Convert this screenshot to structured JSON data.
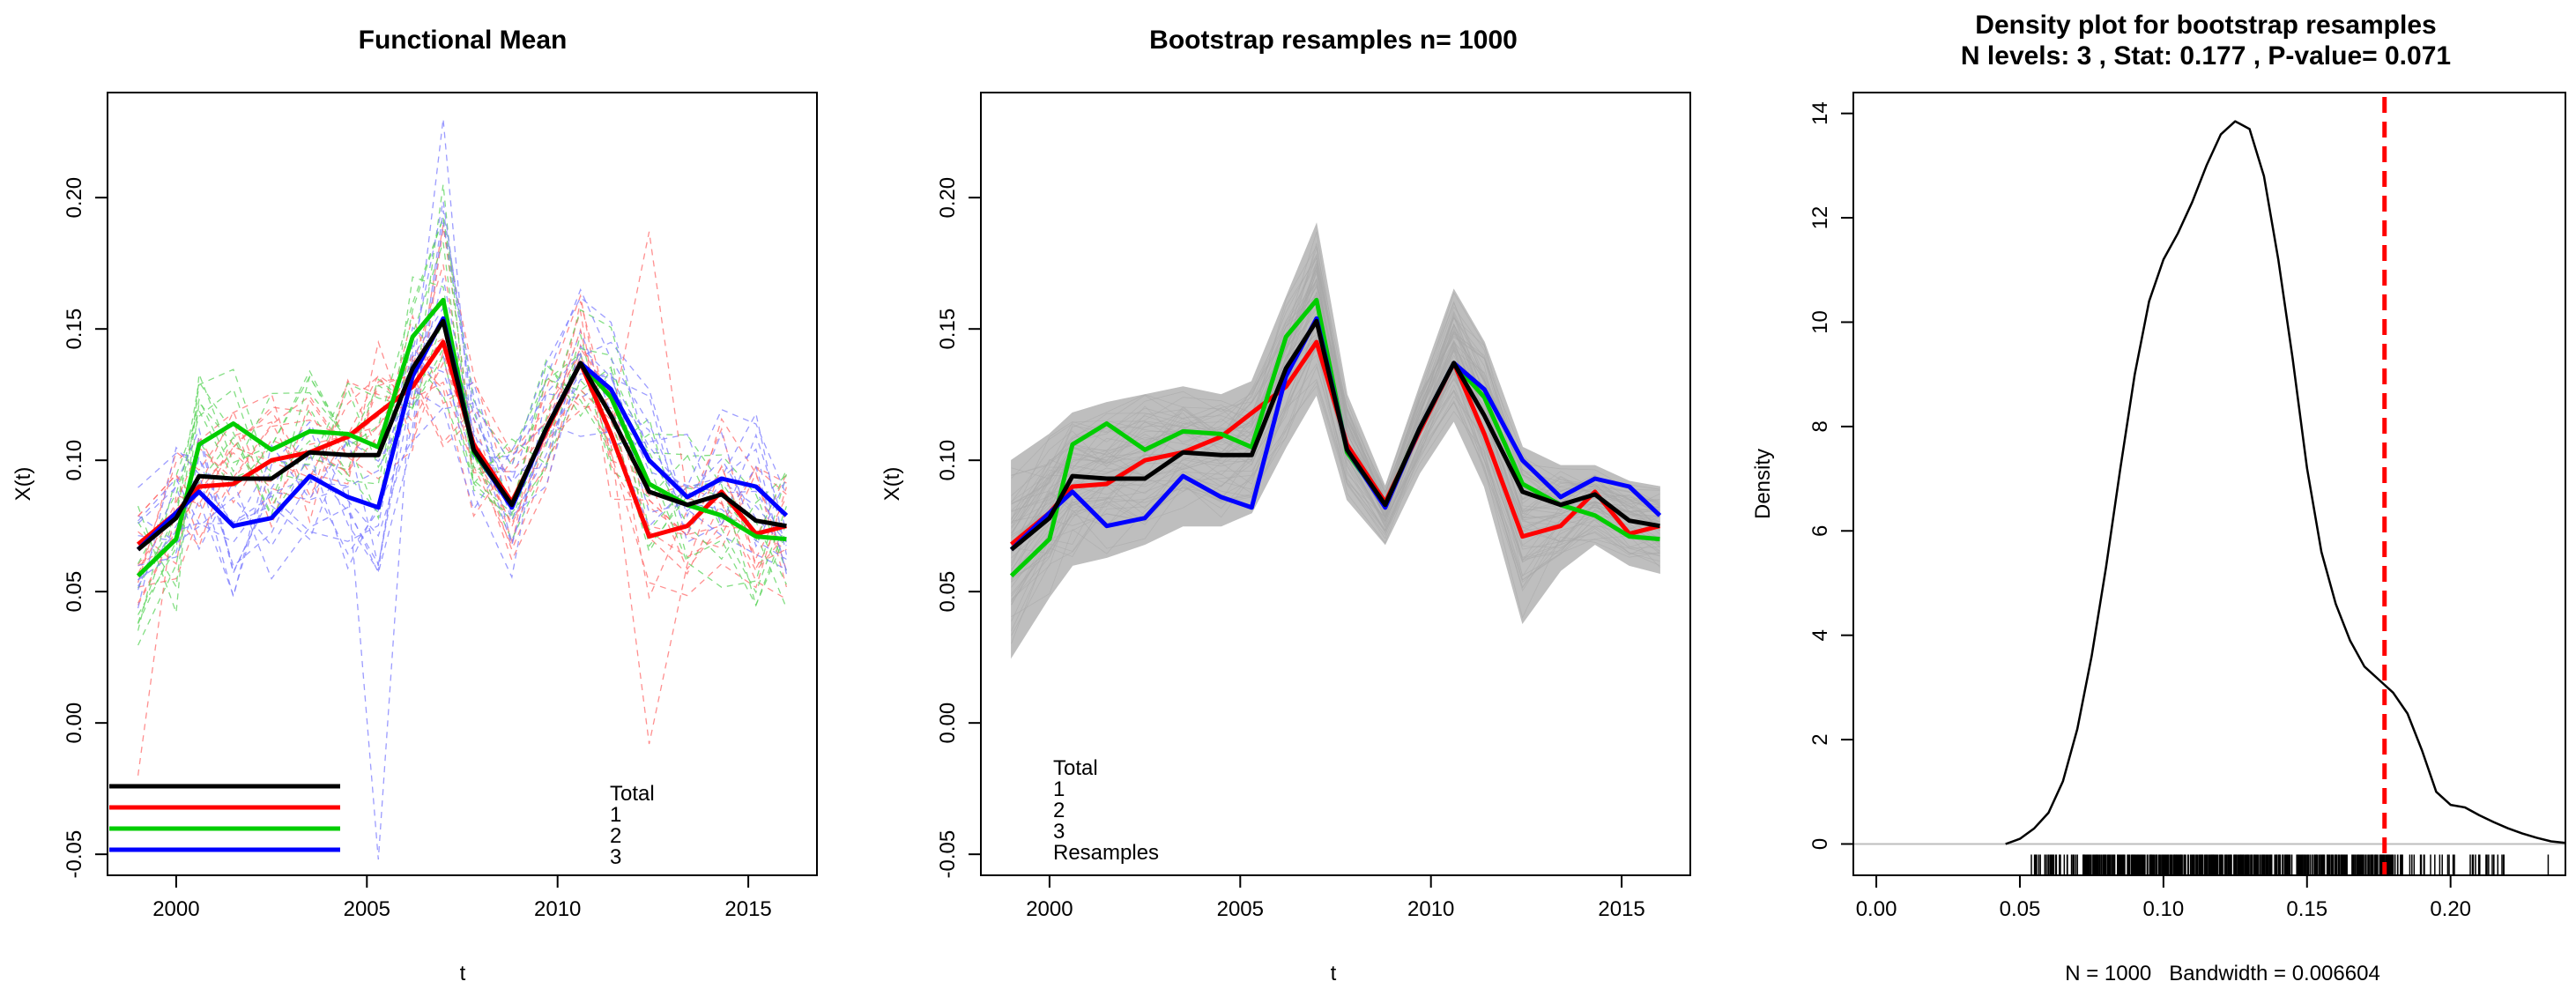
{
  "chart_data": [
    {
      "type": "line",
      "title": "Functional Mean",
      "xlabel": "t",
      "ylabel": "X(t)",
      "xlim": [
        1998.2,
        2016.8
      ],
      "ylim": [
        -0.058,
        0.24
      ],
      "xticks": [
        2000,
        2005,
        2010,
        2015
      ],
      "yticks": [
        -0.05,
        0.0,
        0.05,
        0.1,
        0.15,
        0.2
      ],
      "x": [
        1999,
        2000,
        2000.6,
        2001.5,
        2002.5,
        2003.5,
        2004.5,
        2005.3,
        2006.2,
        2007,
        2007.8,
        2008.8,
        2009.7,
        2010.6,
        2011.4,
        2012.4,
        2013.4,
        2014.3,
        2015.2,
        2016
      ],
      "series": [
        {
          "name": "Total",
          "color": "#000000",
          "values": [
            0.066,
            0.078,
            0.094,
            0.093,
            0.093,
            0.103,
            0.102,
            0.102,
            0.135,
            0.153,
            0.104,
            0.083,
            0.112,
            0.137,
            0.117,
            0.088,
            0.083,
            0.087,
            0.077,
            0.075
          ]
        },
        {
          "name": "1",
          "color": "#ff0000",
          "values": [
            0.068,
            0.08,
            0.09,
            0.091,
            0.1,
            0.103,
            0.109,
            0.118,
            0.128,
            0.145,
            0.106,
            0.084,
            0.111,
            0.137,
            0.11,
            0.071,
            0.075,
            0.088,
            0.072,
            0.075
          ]
        },
        {
          "name": "2",
          "color": "#00cd00",
          "values": [
            0.056,
            0.07,
            0.106,
            0.114,
            0.104,
            0.111,
            0.11,
            0.105,
            0.147,
            0.161,
            0.103,
            0.083,
            0.112,
            0.137,
            0.124,
            0.091,
            0.083,
            0.079,
            0.071,
            0.07
          ]
        },
        {
          "name": "3",
          "color": "#0000ff",
          "values": [
            0.066,
            0.08,
            0.088,
            0.075,
            0.078,
            0.094,
            0.086,
            0.082,
            0.132,
            0.154,
            0.104,
            0.082,
            0.112,
            0.137,
            0.127,
            0.1,
            0.086,
            0.093,
            0.09,
            0.079
          ]
        }
      ],
      "background_curves": "dashed individual sample curves (red, green, blue) around group means",
      "legend": {
        "position": "bottom",
        "entries": [
          "Total",
          "1",
          "2",
          "3"
        ]
      }
    },
    {
      "type": "line",
      "title": "Bootstrap resamples n= 1000",
      "xlabel": "t",
      "ylabel": "X(t)",
      "xlim": [
        1998.2,
        2016.8
      ],
      "ylim": [
        -0.058,
        0.24
      ],
      "xticks": [
        2000,
        2005,
        2010,
        2015
      ],
      "yticks": [
        -0.05,
        0.0,
        0.05,
        0.1,
        0.15,
        0.2
      ],
      "x": [
        1999,
        2000,
        2000.6,
        2001.5,
        2002.5,
        2003.5,
        2004.5,
        2005.3,
        2006.2,
        2007,
        2007.8,
        2008.8,
        2009.7,
        2010.6,
        2011.4,
        2012.4,
        2013.4,
        2014.3,
        2015.2,
        2016
      ],
      "series": [
        {
          "name": "Total",
          "color": "#000000",
          "values": [
            0.066,
            0.078,
            0.094,
            0.093,
            0.093,
            0.103,
            0.102,
            0.102,
            0.135,
            0.153,
            0.104,
            0.083,
            0.112,
            0.137,
            0.117,
            0.088,
            0.083,
            0.087,
            0.077,
            0.075
          ]
        },
        {
          "name": "1",
          "color": "#ff0000",
          "values": [
            0.068,
            0.08,
            0.09,
            0.091,
            0.1,
            0.103,
            0.109,
            0.118,
            0.128,
            0.145,
            0.106,
            0.084,
            0.111,
            0.137,
            0.11,
            0.071,
            0.075,
            0.088,
            0.072,
            0.075
          ]
        },
        {
          "name": "2",
          "color": "#00cd00",
          "values": [
            0.056,
            0.07,
            0.106,
            0.114,
            0.104,
            0.111,
            0.11,
            0.105,
            0.147,
            0.161,
            0.103,
            0.083,
            0.112,
            0.137,
            0.124,
            0.091,
            0.083,
            0.079,
            0.071,
            0.07
          ]
        },
        {
          "name": "3",
          "color": "#0000ff",
          "values": [
            0.066,
            0.08,
            0.088,
            0.075,
            0.078,
            0.094,
            0.086,
            0.082,
            0.132,
            0.154,
            0.104,
            0.082,
            0.112,
            0.137,
            0.127,
            0.1,
            0.086,
            0.093,
            0.09,
            0.079
          ]
        }
      ],
      "resample_band": {
        "color": "#bebebe",
        "upper": [
          0.1,
          0.11,
          0.118,
          0.122,
          0.125,
          0.128,
          0.125,
          0.13,
          0.162,
          0.19,
          0.125,
          0.09,
          0.128,
          0.165,
          0.145,
          0.105,
          0.098,
          0.098,
          0.092,
          0.09
        ],
        "lower": [
          0.025,
          0.048,
          0.06,
          0.063,
          0.068,
          0.075,
          0.075,
          0.08,
          0.105,
          0.125,
          0.085,
          0.068,
          0.095,
          0.115,
          0.09,
          0.038,
          0.058,
          0.068,
          0.06,
          0.057
        ]
      },
      "legend": {
        "position": "bottom",
        "entries": [
          "Total",
          "1",
          "2",
          "3",
          "Resamples"
        ]
      }
    },
    {
      "type": "area",
      "title": "Density plot for bootstrap resamples",
      "subtitle": "N levels: 3 , Stat: 0.177 , P-value= 0.071",
      "xlabel": "N = 1000   Bandwidth = 0.006604",
      "ylabel": "Density",
      "xlim": [
        -0.008,
        0.24
      ],
      "ylim": [
        -0.6,
        14.4
      ],
      "xticks": [
        0.0,
        0.05,
        0.1,
        0.15,
        0.2
      ],
      "yticks": [
        0,
        2,
        4,
        6,
        8,
        10,
        12,
        14
      ],
      "density_x": [
        0.045,
        0.05,
        0.055,
        0.06,
        0.065,
        0.07,
        0.075,
        0.08,
        0.085,
        0.09,
        0.095,
        0.1,
        0.105,
        0.11,
        0.115,
        0.12,
        0.125,
        0.13,
        0.135,
        0.14,
        0.145,
        0.15,
        0.155,
        0.16,
        0.165,
        0.17,
        0.175,
        0.18,
        0.185,
        0.19,
        0.195,
        0.2,
        0.205,
        0.21,
        0.215,
        0.22,
        0.225,
        0.23,
        0.235,
        0.24
      ],
      "density_y": [
        0.0,
        0.1,
        0.3,
        0.6,
        1.2,
        2.2,
        3.6,
        5.3,
        7.2,
        9.0,
        10.4,
        11.2,
        11.7,
        12.3,
        13.0,
        13.6,
        13.85,
        13.7,
        12.8,
        11.2,
        9.3,
        7.2,
        5.6,
        4.6,
        3.9,
        3.4,
        3.15,
        2.9,
        2.5,
        1.8,
        1.0,
        0.75,
        0.7,
        0.55,
        0.42,
        0.3,
        0.2,
        0.12,
        0.05,
        0.02
      ],
      "stat_line": {
        "value": 0.177,
        "color": "#ff0000",
        "style": "dashed"
      },
      "rug": "1000 bootstrap statistic values along x-axis"
    }
  ]
}
